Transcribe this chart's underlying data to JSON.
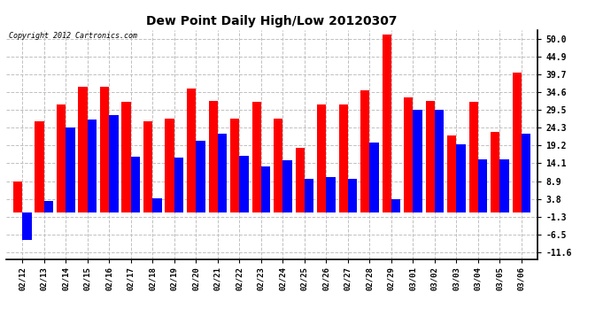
{
  "title": "Dew Point Daily High/Low 20120307",
  "copyright": "Copyright 2012 Cartronics.com",
  "red_color": "#ff0000",
  "blue_color": "#0000ff",
  "bg_color": "#ffffff",
  "grid_color": "#c0c0c0",
  "yticks": [
    -11.6,
    -6.5,
    -1.3,
    3.8,
    8.9,
    14.1,
    19.2,
    24.3,
    29.5,
    34.6,
    39.7,
    44.9,
    50.0
  ],
  "ylim": [
    -13.5,
    52.5
  ],
  "dates": [
    "02/12",
    "02/13",
    "02/14",
    "02/15",
    "02/16",
    "02/17",
    "02/18",
    "02/19",
    "02/20",
    "02/21",
    "02/22",
    "02/23",
    "02/24",
    "02/25",
    "02/26",
    "02/27",
    "02/28",
    "02/29",
    "03/01",
    "03/02",
    "03/03",
    "03/04",
    "03/05",
    "03/06"
  ],
  "high": [
    8.9,
    26.1,
    30.9,
    36.0,
    36.0,
    31.9,
    26.1,
    27.0,
    35.6,
    32.0,
    27.0,
    31.9,
    27.0,
    18.5,
    30.9,
    30.9,
    35.1,
    51.1,
    33.1,
    32.0,
    22.0,
    31.9,
    23.0,
    40.1
  ],
  "low": [
    -8.0,
    3.3,
    24.3,
    26.6,
    27.9,
    16.0,
    3.9,
    15.8,
    20.5,
    22.5,
    16.2,
    13.1,
    14.9,
    9.5,
    10.0,
    9.5,
    20.1,
    3.8,
    29.5,
    29.5,
    19.5,
    15.1,
    15.1,
    22.5
  ]
}
